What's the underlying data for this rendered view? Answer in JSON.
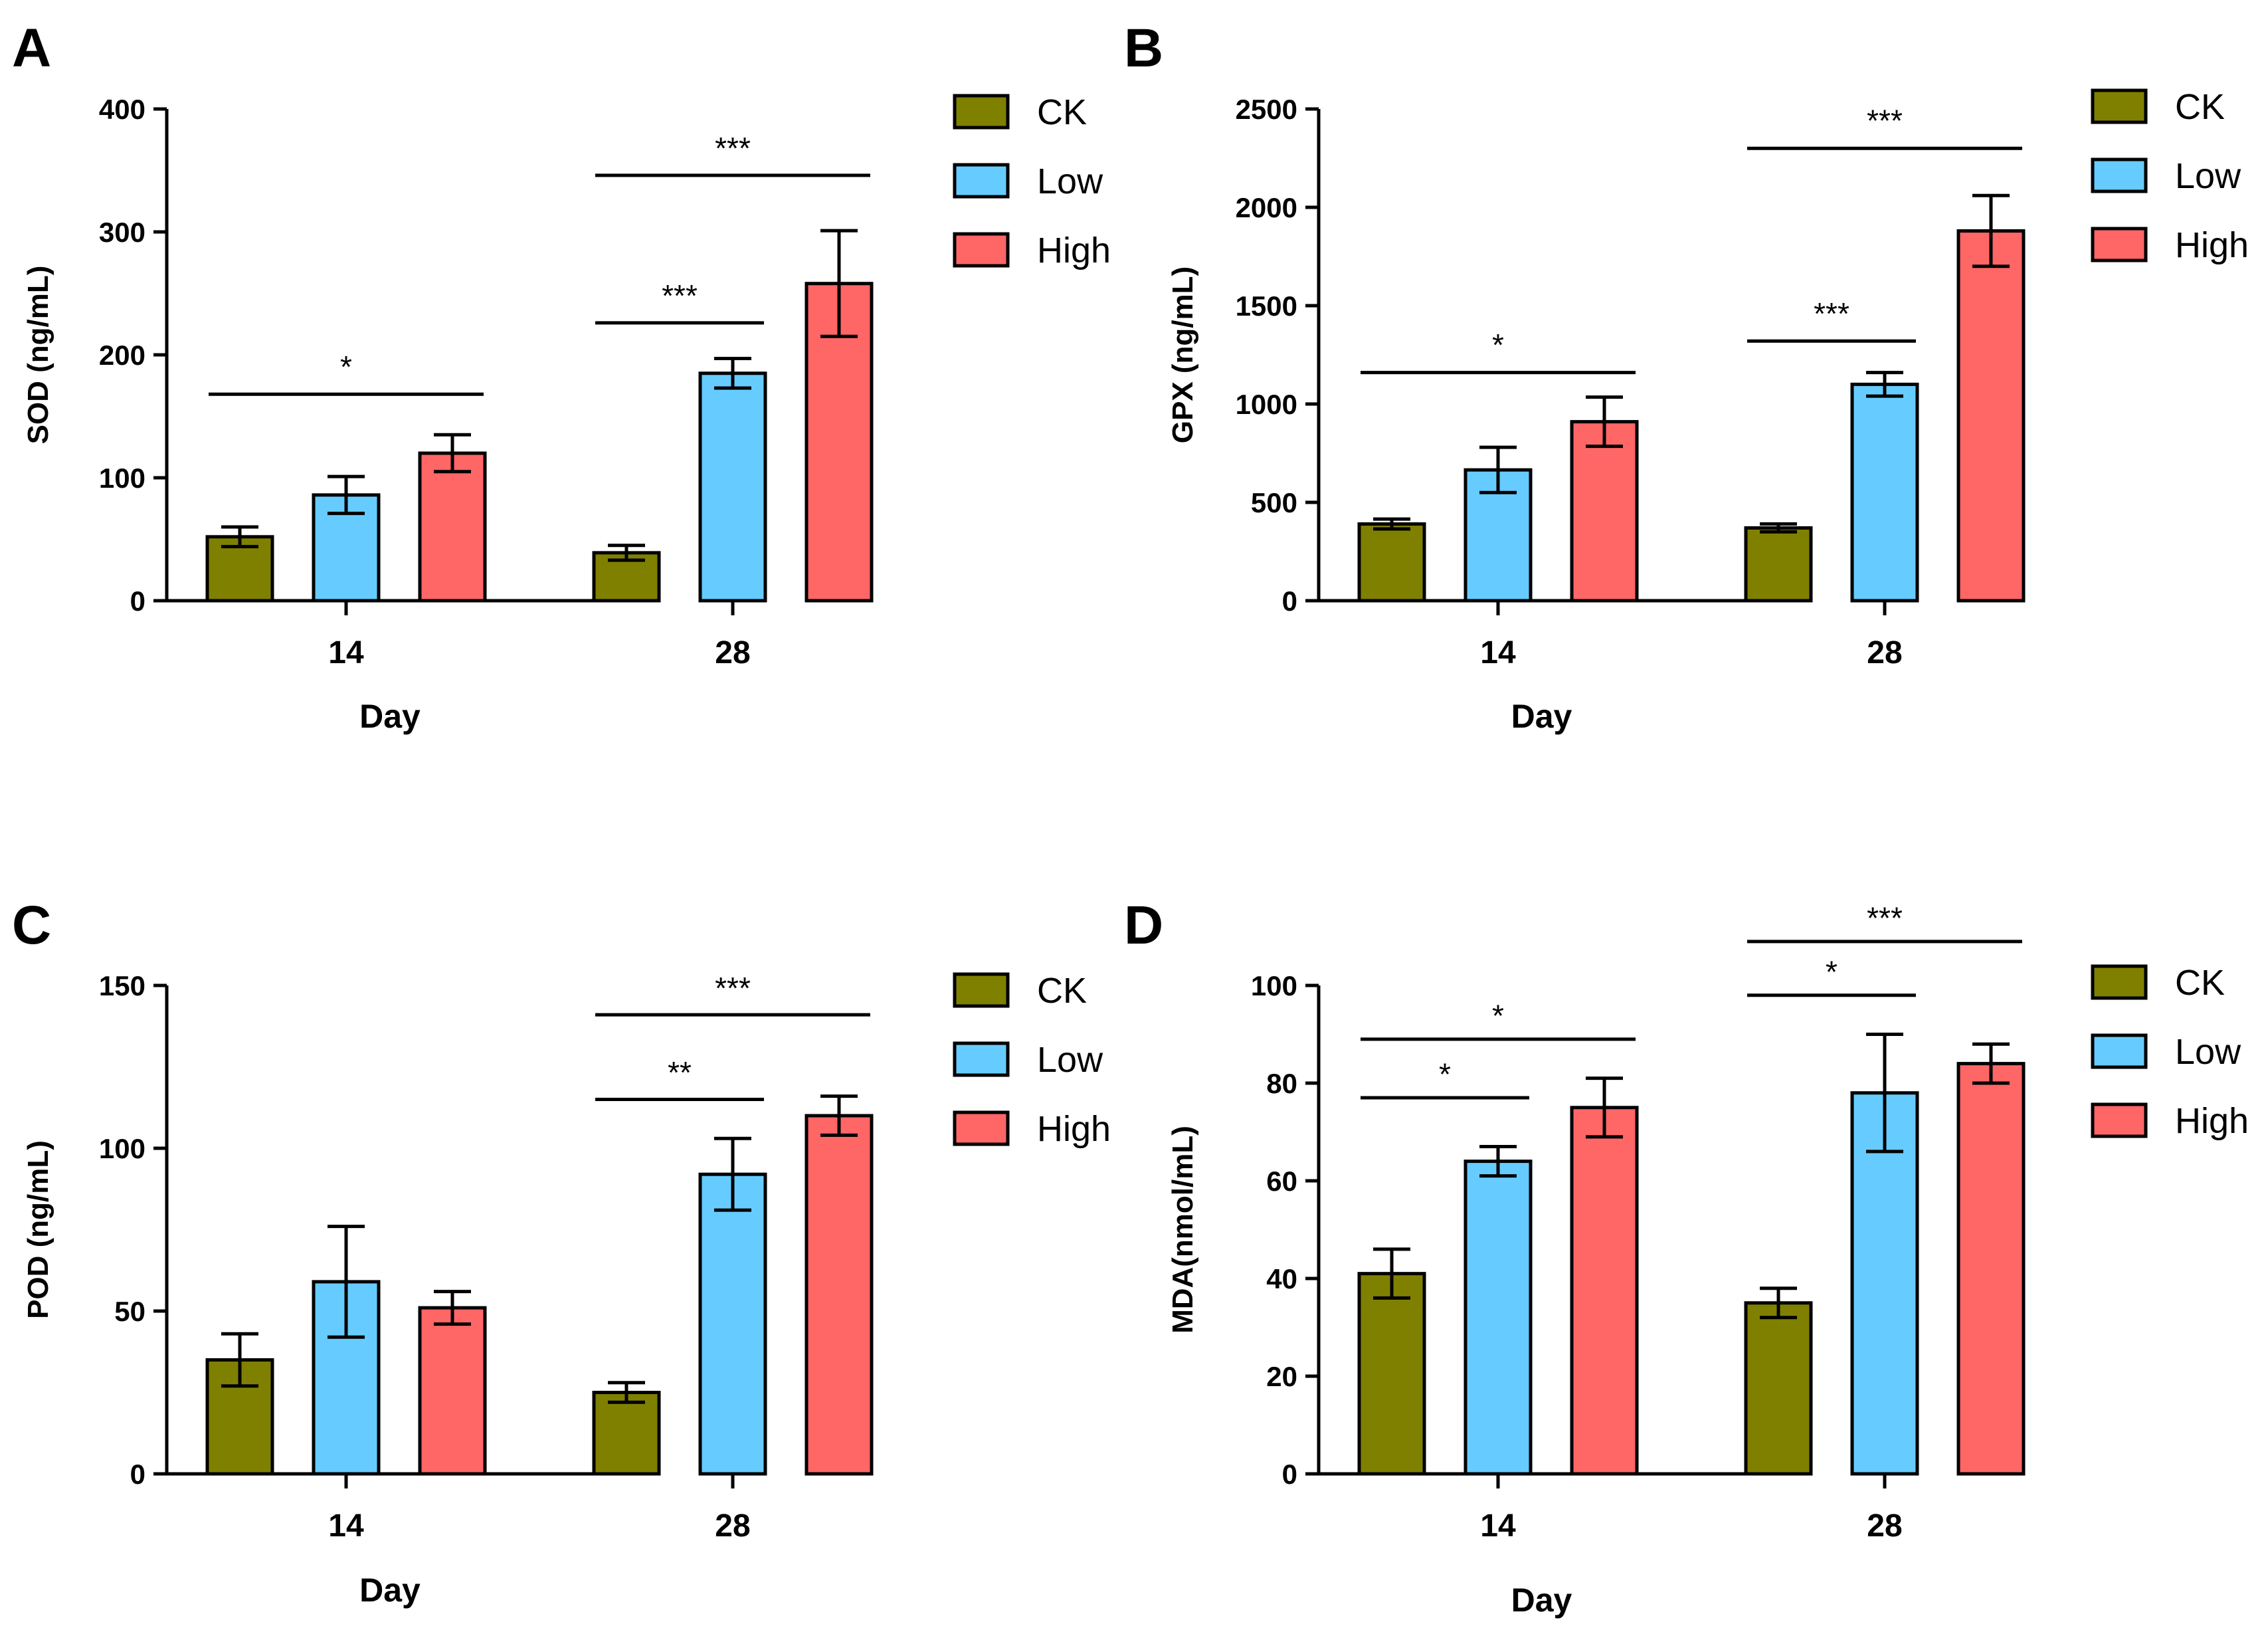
{
  "figure_title": "",
  "chart_data": [
    {
      "panel": "A",
      "type": "bar",
      "title": "",
      "xlabel": "Day",
      "ylabel": "SOD (ng/mL)",
      "ylim": [
        0,
        400
      ],
      "yticks": [
        0,
        100,
        200,
        300,
        400
      ],
      "categories": [
        "14",
        "28"
      ],
      "series": [
        {
          "name": "CK",
          "color": "#808000",
          "values": [
            52,
            39
          ],
          "errors": [
            8,
            6
          ]
        },
        {
          "name": "Low",
          "color": "#66CCFF",
          "values": [
            86,
            185
          ],
          "errors": [
            15,
            12
          ]
        },
        {
          "name": "High",
          "color": "#FF6666",
          "values": [
            120,
            258
          ],
          "errors": [
            15,
            43
          ]
        }
      ],
      "significance": [
        {
          "category": 0,
          "from": 0,
          "to": 2,
          "label": "*",
          "y": 168,
          "label_y": 187
        },
        {
          "category": 1,
          "from": 0,
          "to": 1,
          "label": "***",
          "y": 226,
          "label_y": 245
        },
        {
          "category": 1,
          "from": 0,
          "to": 2,
          "label": "***",
          "y": 346,
          "label_y": 365
        }
      ],
      "legend": [
        "CK",
        "Low",
        "High"
      ]
    },
    {
      "panel": "B",
      "type": "bar",
      "title": "",
      "xlabel": "Day",
      "ylabel": "GPX (ng/mL)",
      "ylim": [
        0,
        2500
      ],
      "yticks": [
        0,
        500,
        1000,
        1500,
        2000,
        2500
      ],
      "categories": [
        "14",
        "28"
      ],
      "series": [
        {
          "name": "CK",
          "color": "#808000",
          "values": [
            390,
            370
          ],
          "errors": [
            25,
            20
          ]
        },
        {
          "name": "Low",
          "color": "#66CCFF",
          "values": [
            665,
            1100
          ],
          "errors": [
            115,
            60
          ]
        },
        {
          "name": "High",
          "color": "#FF6666",
          "values": [
            910,
            1880
          ],
          "errors": [
            125,
            180
          ]
        }
      ],
      "significance": [
        {
          "category": 0,
          "from": 0,
          "to": 2,
          "label": "*",
          "y": 1160,
          "label_y": 1280
        },
        {
          "category": 1,
          "from": 0,
          "to": 1,
          "label": "***",
          "y": 1320,
          "label_y": 1440
        },
        {
          "category": 1,
          "from": 0,
          "to": 2,
          "label": "***",
          "y": 2300,
          "label_y": 2420
        }
      ],
      "legend": [
        "CK",
        "Low",
        "High"
      ]
    },
    {
      "panel": "C",
      "type": "bar",
      "title": "",
      "xlabel": "Day",
      "ylabel": "POD (ng/mL)",
      "ylim": [
        0,
        150
      ],
      "yticks": [
        0,
        50,
        100,
        150
      ],
      "categories": [
        "14",
        "28"
      ],
      "series": [
        {
          "name": "CK",
          "color": "#808000",
          "values": [
            35,
            25
          ],
          "errors": [
            8,
            3
          ]
        },
        {
          "name": "Low",
          "color": "#66CCFF",
          "values": [
            59,
            92
          ],
          "errors": [
            17,
            11
          ]
        },
        {
          "name": "High",
          "color": "#FF6666",
          "values": [
            51,
            110
          ],
          "errors": [
            5,
            6
          ]
        }
      ],
      "significance": [
        {
          "category": 1,
          "from": 0,
          "to": 1,
          "label": "**",
          "y": 115,
          "label_y": 122
        },
        {
          "category": 1,
          "from": 0,
          "to": 2,
          "label": "***",
          "y": 141,
          "label_y": 148
        }
      ],
      "legend": [
        "CK",
        "Low",
        "High"
      ]
    },
    {
      "panel": "D",
      "type": "bar",
      "title": "",
      "xlabel": "Day",
      "ylabel": "MDA(nmol/mL)",
      "ylim": [
        0,
        100
      ],
      "yticks": [
        0,
        20,
        40,
        60,
        80,
        100
      ],
      "categories": [
        "14",
        "28"
      ],
      "series": [
        {
          "name": "CK",
          "color": "#808000",
          "values": [
            41,
            35
          ],
          "errors": [
            5,
            3
          ]
        },
        {
          "name": "Low",
          "color": "#66CCFF",
          "values": [
            64,
            78
          ],
          "errors": [
            3,
            12
          ]
        },
        {
          "name": "High",
          "color": "#FF6666",
          "values": [
            75,
            84
          ],
          "errors": [
            6,
            4
          ]
        }
      ],
      "significance": [
        {
          "category": 0,
          "from": 0,
          "to": 1,
          "label": "*",
          "y": 77,
          "label_y": 81
        },
        {
          "category": 0,
          "from": 0,
          "to": 2,
          "label": "*",
          "y": 89,
          "label_y": 93
        },
        {
          "category": 1,
          "from": 0,
          "to": 1,
          "label": "*",
          "y": 98,
          "label_y": 102
        },
        {
          "category": 1,
          "from": 0,
          "to": 2,
          "label": "***",
          "y": 109,
          "label_y": 113
        }
      ],
      "legend": [
        "CK",
        "Low",
        "High"
      ]
    }
  ]
}
